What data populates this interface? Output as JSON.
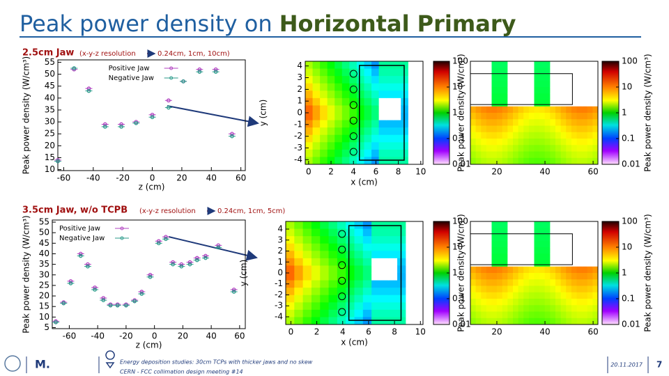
{
  "title": {
    "plain": "Peak power density on ",
    "bold": "Horizontal Primary"
  },
  "panels": [
    {
      "heading": "2.5cm Jaw",
      "note_pre": "(x-y-z resolution",
      "note_post": "0.24cm, 1cm, 10cm)"
    },
    {
      "heading": "3.5cm Jaw, w/o TCPB",
      "note_pre": "(x-y-z resolution",
      "note_post": "0.24cm, 1cm, 5cm)"
    }
  ],
  "chart_data": [
    {
      "type": "scatter",
      "xlabel": "z (cm)",
      "ylabel": "Peak power density (W/cm³)",
      "xlim": [
        -64,
        63
      ],
      "xticks": [
        -60,
        -40,
        -20,
        0,
        20,
        40,
        60
      ],
      "ylim": [
        9.6,
        56
      ],
      "yticks": [
        10,
        15,
        20,
        25,
        30,
        35,
        40,
        45,
        50,
        55
      ],
      "legend": "upper right",
      "x": [
        -64,
        -53,
        -43,
        -32,
        -21,
        -11,
        0,
        11,
        21,
        32,
        43,
        54
      ],
      "series": [
        {
          "name": "Positive Jaw",
          "color": "#b040c0",
          "values": [
            14,
            52,
            44,
            29,
            29,
            30,
            33,
            39,
            47,
            52,
            52,
            25
          ]
        },
        {
          "name": "Negative Jaw",
          "color": "#2a9a8a",
          "values": [
            13.5,
            52.5,
            43,
            28,
            28,
            29.5,
            32,
            36,
            47,
            51,
            51,
            24
          ]
        }
      ]
    },
    {
      "type": "heatmap",
      "xlabel": "x (cm)",
      "ylabel": "y (cm)",
      "xlim": [
        -0.3,
        10.2
      ],
      "xticks": [
        0,
        2,
        4,
        6,
        8,
        10
      ],
      "ylim": [
        -4.4,
        4.4
      ],
      "yticks": [
        4,
        3,
        2,
        1,
        0,
        -1,
        -2,
        -3,
        -4
      ],
      "colorbar": {
        "label": "Peak power density (W/cm³)",
        "lim": [
          0.01,
          100
        ],
        "log": true,
        "ticks": [
          100,
          10,
          1,
          0.1,
          0.01
        ]
      }
    },
    {
      "type": "heatmap",
      "view": "side",
      "xlim": [
        9,
        62
      ],
      "xticks": [
        20,
        40,
        60
      ],
      "colorbar": {
        "label": "Peak power density (W/cm³)",
        "lim": [
          0.01,
          100
        ],
        "log": true,
        "ticks": [
          100,
          10,
          1,
          0.1,
          0.01
        ]
      }
    },
    {
      "type": "scatter",
      "xlabel": "z (cm)",
      "ylabel": "Peak power density (W/cm³)",
      "xlim": [
        -72,
        64
      ],
      "xticks": [
        -60,
        -40,
        -20,
        0,
        20,
        40,
        60
      ],
      "ylim": [
        4.5,
        56
      ],
      "yticks": [
        5,
        10,
        15,
        20,
        25,
        30,
        35,
        40,
        45,
        50,
        55
      ],
      "legend": "upper left",
      "x": [
        -69.5,
        -64,
        -59,
        -52,
        -47,
        -42,
        -36,
        -31,
        -26,
        -20,
        -14,
        -9,
        -3,
        3,
        8,
        13,
        19,
        25,
        30,
        36,
        45,
        56
      ],
      "series": [
        {
          "name": "Positive Jaw",
          "color": "#b040c0",
          "values": [
            8,
            17,
            27,
            40,
            35,
            24,
            19,
            16,
            16,
            16,
            18,
            22,
            30,
            46,
            48,
            36,
            35,
            36,
            38,
            39,
            44,
            23
          ]
        },
        {
          "name": "Negative Jaw",
          "color": "#2a9a8a",
          "values": [
            7.5,
            16.5,
            26,
            39,
            34,
            23,
            18,
            15.5,
            15.5,
            15.5,
            17.5,
            21,
            29,
            45,
            47,
            35,
            34,
            35,
            37,
            38,
            43,
            22
          ]
        }
      ]
    },
    {
      "type": "heatmap",
      "xlabel": "x (cm)",
      "ylabel": "y (cm)",
      "xlim": [
        -0.4,
        10.2
      ],
      "xticks": [
        0,
        2,
        4,
        6,
        8,
        10
      ],
      "ylim": [
        -4.7,
        4.7
      ],
      "yticks": [
        4,
        3,
        2,
        1,
        0,
        -1,
        -2,
        -3,
        -4
      ],
      "colorbar": {
        "label": "Peak power density (W/cm³)",
        "lim": [
          0.01,
          100
        ],
        "log": true,
        "ticks": [
          100,
          10,
          1,
          0.1,
          0.01
        ]
      }
    },
    {
      "type": "heatmap",
      "view": "side",
      "xlim": [
        9,
        62
      ],
      "xticks": [
        20,
        40,
        60
      ],
      "colorbar": {
        "label": "Peak power density (W/cm³)",
        "lim": [
          0.01,
          100
        ],
        "log": true,
        "ticks": [
          100,
          10,
          1,
          0.1,
          0.01
        ]
      }
    }
  ],
  "footer": {
    "logo": "M.",
    "line1": "Energy deposition studies: 30cm TCPs with thicker jaws and no skew",
    "line2": "CERN - FCC collimation design meeting #14",
    "date": "20.11.2017",
    "page": "7"
  }
}
